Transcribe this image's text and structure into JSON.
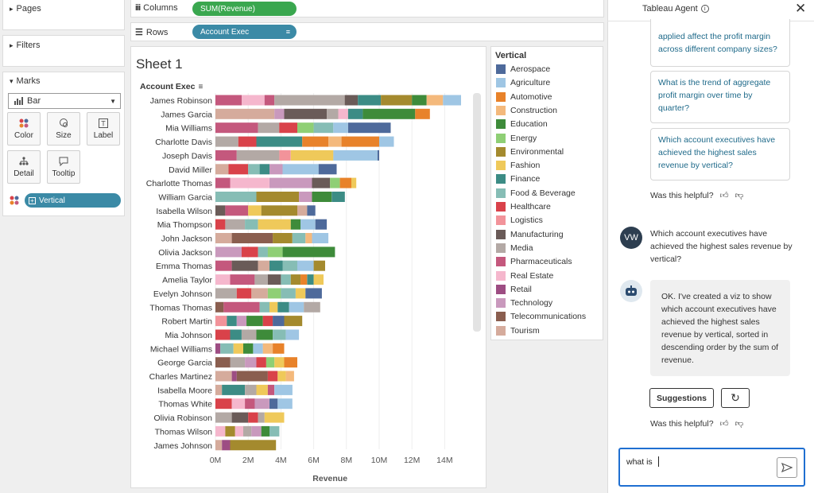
{
  "left_panel": {
    "pages_label": "Pages",
    "filters_label": "Filters",
    "marks_label": "Marks",
    "mark_type": "Bar",
    "cards": {
      "color": "Color",
      "size": "Size",
      "label": "Label",
      "detail": "Detail",
      "tooltip": "Tooltip"
    },
    "color_pill": "Vertical"
  },
  "shelves": {
    "columns_label": "Columns",
    "columns_pill": "SUM(Revenue)",
    "rows_label": "Rows",
    "rows_pill": "Account Exec"
  },
  "sheet": {
    "title": "Sheet 1",
    "row_header": "Account Exec"
  },
  "legend": {
    "title": "Vertical",
    "items": [
      {
        "name": "Aerospace",
        "color": "#4e6a9b"
      },
      {
        "name": "Agriculture",
        "color": "#9fc6e4"
      },
      {
        "name": "Automotive",
        "color": "#e8822a"
      },
      {
        "name": "Construction",
        "color": "#f4b97c"
      },
      {
        "name": "Education",
        "color": "#3e8b3a"
      },
      {
        "name": "Energy",
        "color": "#8fcf75"
      },
      {
        "name": "Environmental",
        "color": "#a48a2e"
      },
      {
        "name": "Fashion",
        "color": "#efc95a"
      },
      {
        "name": "Finance",
        "color": "#3c8c85"
      },
      {
        "name": "Food & Beverage",
        "color": "#86bdb5"
      },
      {
        "name": "Healthcare",
        "color": "#d9424a"
      },
      {
        "name": "Logistics",
        "color": "#f2939a"
      },
      {
        "name": "Manufacturing",
        "color": "#6a5b58"
      },
      {
        "name": "Media",
        "color": "#b3a9a5"
      },
      {
        "name": "Pharmaceuticals",
        "color": "#c4587d"
      },
      {
        "name": "Real Estate",
        "color": "#f5b7cd"
      },
      {
        "name": "Retail",
        "color": "#9d4d83"
      },
      {
        "name": "Technology",
        "color": "#c999bd"
      },
      {
        "name": "Telecommunications",
        "color": "#8a5e4f"
      },
      {
        "name": "Tourism",
        "color": "#d5ab9c"
      }
    ]
  },
  "chart_data": {
    "type": "bar",
    "orientation": "horizontal",
    "stacked": true,
    "title": "Sheet 1",
    "xlabel": "Revenue",
    "ylabel": "Account Exec",
    "xlim": [
      0,
      15
    ],
    "xticks": [
      "0M",
      "2M",
      "4M",
      "6M",
      "8M",
      "10M",
      "12M",
      "14M"
    ],
    "unit": "M",
    "categories": [
      "James Robinson",
      "James Garcia",
      "Mia Williams",
      "Charlotte Davis",
      "Joseph Davis",
      "David Miller",
      "Charlotte Thomas",
      "William Garcia",
      "Isabella Wilson",
      "Mia Thompson",
      "John Jackson",
      "Olivia Jackson",
      "Emma Thomas",
      "Amelia Taylor",
      "Evelyn Johnson",
      "Thomas Thomas",
      "Robert Martin",
      "Mia Johnson",
      "Michael Williams",
      "George Garcia",
      "Charles Martinez",
      "Isabella Moore",
      "Thomas White",
      "Olivia Robinson",
      "Thomas Wilson",
      "James Johnson"
    ],
    "totals": [
      15.0,
      12.3,
      10.9,
      10.9,
      10.0,
      8.9,
      8.6,
      7.9,
      7.8,
      7.7,
      7.7,
      7.3,
      6.7,
      6.6,
      6.5,
      6.4,
      5.3,
      5.1,
      5.1,
      5.0,
      4.8,
      4.7,
      4.7,
      4.2,
      3.9,
      3.7
    ],
    "segments": [
      [
        [
          "Pharmaceuticals",
          1.6
        ],
        [
          "Real Estate",
          1.4
        ],
        [
          "Pharmaceuticals",
          0.6
        ],
        [
          "Media",
          4.3
        ],
        [
          "Manufacturing",
          0.8
        ],
        [
          "Finance",
          1.4
        ],
        [
          "Environmental",
          1.9
        ],
        [
          "Education",
          0.9
        ],
        [
          "Construction",
          1.0
        ],
        [
          "Agriculture",
          1.1
        ]
      ],
      [
        [
          "Tourism",
          3.6
        ],
        [
          "Technology",
          0.6
        ],
        [
          "Manufacturing",
          2.6
        ],
        [
          "Media",
          0.7
        ],
        [
          "Real Estate",
          0.6
        ],
        [
          "Finance",
          0.9
        ],
        [
          "Education",
          3.2
        ],
        [
          "Automotive",
          0.9
        ]
      ],
      [
        [
          "Pharmaceuticals",
          2.6
        ],
        [
          "Media",
          1.3
        ],
        [
          "Healthcare",
          1.1
        ],
        [
          "Energy",
          1.0
        ],
        [
          "Food & Beverage",
          1.2
        ],
        [
          "Agriculture",
          0.9
        ],
        [
          "Aerospace",
          2.6
        ]
      ],
      [
        [
          "Media",
          1.4
        ],
        [
          "Healthcare",
          1.1
        ],
        [
          "Finance",
          2.8
        ],
        [
          "Automotive",
          1.6
        ],
        [
          "Construction",
          0.8
        ],
        [
          "Automotive",
          2.3
        ],
        [
          "Agriculture",
          0.9
        ]
      ],
      [
        [
          "Pharmaceuticals",
          1.3
        ],
        [
          "Media",
          2.6
        ],
        [
          "Logistics",
          0.7
        ],
        [
          "Fashion",
          2.6
        ],
        [
          "Agriculture",
          2.7
        ],
        [
          "Aerospace",
          0.1
        ]
      ],
      [
        [
          "Tourism",
          0.8
        ],
        [
          "Healthcare",
          1.2
        ],
        [
          "Food & Beverage",
          0.7
        ],
        [
          "Finance",
          0.6
        ],
        [
          "Technology",
          0.8
        ],
        [
          "Agriculture",
          2.2
        ],
        [
          "Aerospace",
          1.1
        ]
      ],
      [
        [
          "Pharmaceuticals",
          0.9
        ],
        [
          "Real Estate",
          2.4
        ],
        [
          "Technology",
          2.6
        ],
        [
          "Manufacturing",
          1.1
        ],
        [
          "Energy",
          0.6
        ],
        [
          "Automotive",
          0.7
        ],
        [
          "Fashion",
          0.3
        ]
      ],
      [
        [
          "Food & Beverage",
          2.5
        ],
        [
          "Environmental",
          2.6
        ],
        [
          "Technology",
          0.8
        ],
        [
          "Education",
          1.2
        ],
        [
          "Finance",
          0.8
        ]
      ],
      [
        [
          "Manufacturing",
          0.6
        ],
        [
          "Pharmaceuticals",
          1.4
        ],
        [
          "Fashion",
          0.8
        ],
        [
          "Environmental",
          2.2
        ],
        [
          "Tourism",
          0.6
        ],
        [
          "Aerospace",
          0.5
        ]
      ],
      [
        [
          "Healthcare",
          0.6
        ],
        [
          "Media",
          1.2
        ],
        [
          "Food & Beverage",
          0.8
        ],
        [
          "Fashion",
          2.0
        ],
        [
          "Education",
          0.6
        ],
        [
          "Agriculture",
          0.9
        ],
        [
          "Aerospace",
          0.7
        ]
      ],
      [
        [
          "Tourism",
          1.0
        ],
        [
          "Telecommunications",
          2.5
        ],
        [
          "Environmental",
          1.2
        ],
        [
          "Food & Beverage",
          0.8
        ],
        [
          "Construction",
          0.4
        ],
        [
          "Agriculture",
          1.0
        ]
      ],
      [
        [
          "Technology",
          1.6
        ],
        [
          "Healthcare",
          1.0
        ],
        [
          "Food & Beverage",
          0.6
        ],
        [
          "Energy",
          0.9
        ],
        [
          "Education",
          1.7
        ],
        [
          "Education",
          1.5
        ]
      ],
      [
        [
          "Pharmaceuticals",
          1.0
        ],
        [
          "Manufacturing",
          1.6
        ],
        [
          "Tourism",
          0.7
        ],
        [
          "Finance",
          0.8
        ],
        [
          "Food & Beverage",
          0.9
        ],
        [
          "Agriculture",
          1.0
        ],
        [
          "Environmental",
          0.7
        ]
      ],
      [
        [
          "Real Estate",
          0.9
        ],
        [
          "Pharmaceuticals",
          1.5
        ],
        [
          "Media",
          0.8
        ],
        [
          "Manufacturing",
          0.8
        ],
        [
          "Food & Beverage",
          0.6
        ],
        [
          "Environmental",
          0.6
        ],
        [
          "Automotive",
          0.4
        ],
        [
          "Finance",
          0.4
        ],
        [
          "Fashion",
          0.6
        ]
      ],
      [
        [
          "Media",
          1.3
        ],
        [
          "Healthcare",
          0.9
        ],
        [
          "Tourism",
          1.0
        ],
        [
          "Energy",
          0.8
        ],
        [
          "Food & Beverage",
          0.9
        ],
        [
          "Fashion",
          0.6
        ],
        [
          "Aerospace",
          1.0
        ]
      ],
      [
        [
          "Telecommunications",
          0.5
        ],
        [
          "Pharmaceuticals",
          2.2
        ],
        [
          "Food & Beverage",
          0.6
        ],
        [
          "Fashion",
          0.5
        ],
        [
          "Finance",
          0.7
        ],
        [
          "Agriculture",
          0.9
        ],
        [
          "Media",
          1.0
        ]
      ],
      [
        [
          "Logistics",
          0.7
        ],
        [
          "Finance",
          0.6
        ],
        [
          "Technology",
          0.6
        ],
        [
          "Education",
          1.0
        ],
        [
          "Healthcare",
          0.6
        ],
        [
          "Aerospace",
          0.7
        ],
        [
          "Environmental",
          1.1
        ]
      ],
      [
        [
          "Healthcare",
          0.9
        ],
        [
          "Finance",
          0.7
        ],
        [
          "Media",
          0.9
        ],
        [
          "Education",
          1.0
        ],
        [
          "Food & Beverage",
          0.8
        ],
        [
          "Agriculture",
          0.8
        ]
      ],
      [
        [
          "Retail",
          0.3
        ],
        [
          "Food & Beverage",
          0.8
        ],
        [
          "Fashion",
          0.6
        ],
        [
          "Education",
          0.6
        ],
        [
          "Agriculture",
          0.6
        ],
        [
          "Construction",
          0.6
        ],
        [
          "Automotive",
          0.7
        ]
      ],
      [
        [
          "Telecommunications",
          0.9
        ],
        [
          "Media",
          0.9
        ],
        [
          "Technology",
          0.7
        ],
        [
          "Healthcare",
          0.6
        ],
        [
          "Energy",
          0.5
        ],
        [
          "Fashion",
          0.6
        ],
        [
          "Automotive",
          0.8
        ]
      ],
      [
        [
          "Tourism",
          1.0
        ],
        [
          "Retail",
          0.3
        ],
        [
          "Telecommunications",
          1.9
        ],
        [
          "Healthcare",
          0.6
        ],
        [
          "Fashion",
          0.5
        ],
        [
          "Construction",
          0.5
        ]
      ],
      [
        [
          "Tourism",
          0.4
        ],
        [
          "Finance",
          1.4
        ],
        [
          "Media",
          0.7
        ],
        [
          "Fashion",
          0.7
        ],
        [
          "Pharmaceuticals",
          0.4
        ],
        [
          "Agriculture",
          1.1
        ]
      ],
      [
        [
          "Healthcare",
          1.0
        ],
        [
          "Real Estate",
          0.8
        ],
        [
          "Pharmaceuticals",
          0.6
        ],
        [
          "Technology",
          0.9
        ],
        [
          "Aerospace",
          0.5
        ],
        [
          "Agriculture",
          0.9
        ]
      ],
      [
        [
          "Media",
          1.0
        ],
        [
          "Manufacturing",
          1.0
        ],
        [
          "Healthcare",
          0.6
        ],
        [
          "Media",
          0.4
        ],
        [
          "Fashion",
          1.2
        ]
      ],
      [
        [
          "Real Estate",
          0.6
        ],
        [
          "Environmental",
          0.6
        ],
        [
          "Real Estate",
          0.5
        ],
        [
          "Media",
          0.5
        ],
        [
          "Technology",
          0.6
        ],
        [
          "Education",
          0.5
        ],
        [
          "Food & Beverage",
          0.6
        ]
      ],
      [
        [
          "Tourism",
          0.4
        ],
        [
          "Retail",
          0.5
        ],
        [
          "Environmental",
          2.8
        ]
      ]
    ]
  },
  "agent": {
    "title": "Tableau Agent",
    "suggestions_top": [
      "applied affect the profit margin across different company sizes?",
      "What is the trend of aggregate profit margin over time by quarter?",
      "Which account executives have achieved the highest sales revenue by vertical?"
    ],
    "helpful_label": "Was this helpful?",
    "user_initials": "VW",
    "user_message": "Which account executives have achieved the highest sales revenue by vertical?",
    "agent_reply": "OK. I've created a viz to show which account executives have achieved the highest sales revenue by vertical, sorted in descending order by the sum of revenue.",
    "suggestions_button": "Suggestions",
    "input_value": "what is"
  }
}
